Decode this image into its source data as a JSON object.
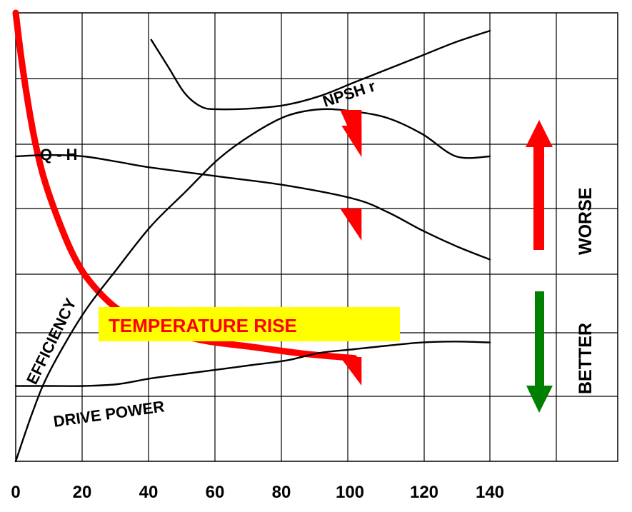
{
  "chart_data": {
    "type": "line",
    "xlim": [
      0,
      140
    ],
    "x_ticks": [
      "0",
      "20",
      "40",
      "60",
      "80",
      "100",
      "120",
      "140"
    ],
    "grid": true,
    "series": [
      {
        "name": "TEMPERATURE RISE",
        "color": "#ff0000",
        "x": [
          0,
          2,
          5,
          8,
          12,
          17,
          22,
          30,
          40,
          55,
          70,
          85,
          100
        ],
        "y": [
          100,
          88,
          74,
          64,
          55,
          46,
          40,
          34,
          30,
          27,
          25.5,
          24,
          23
        ]
      },
      {
        "name": "NPSH r",
        "color": "#000000",
        "x": [
          40,
          45,
          50,
          55,
          60,
          70,
          80,
          90,
          100,
          110,
          120,
          130,
          140
        ],
        "y": [
          94,
          88,
          82,
          79,
          78.5,
          78.7,
          79.5,
          81.5,
          84.5,
          87.5,
          90.5,
          93.5,
          96
        ]
      },
      {
        "name": "Q - H",
        "color": "#000000",
        "x": [
          0,
          10,
          20,
          30,
          40,
          60,
          80,
          100,
          110,
          120,
          130,
          140
        ],
        "y": [
          68,
          68.3,
          68,
          66.8,
          65.5,
          63.5,
          61.5,
          58.5,
          55.5,
          51.5,
          48,
          45
        ]
      },
      {
        "name": "EFFICIENCY",
        "color": "#000000",
        "x": [
          0,
          5,
          10,
          20,
          30,
          40,
          50,
          60,
          70,
          80,
          90,
          100,
          110,
          120,
          130,
          140
        ],
        "y": [
          0,
          11,
          20,
          33,
          43,
          52.5,
          60,
          67.5,
          73,
          77,
          78.5,
          78,
          76.5,
          73,
          68,
          68
        ]
      },
      {
        "name": "DRIVE POWER",
        "color": "#000000",
        "x": [
          0,
          10,
          20,
          30,
          40,
          50,
          60,
          70,
          80,
          90,
          100,
          110,
          120,
          130,
          140
        ],
        "y": [
          16.8,
          16.8,
          16.8,
          17.2,
          18.5,
          19.5,
          20.5,
          21.5,
          22.5,
          24.2,
          25,
          25.8,
          26.5,
          26.7,
          26.5
        ]
      }
    ],
    "markers_x": 100,
    "annotations": {
      "temperature_rise": "TEMPERATURE RISE",
      "worse": "WORSE",
      "better": "BETTER"
    },
    "colors": {
      "temperature": "#ff0000",
      "label_box": "#ffff00",
      "worse_arrow": "#ff0000",
      "better_arrow": "#008000"
    }
  }
}
